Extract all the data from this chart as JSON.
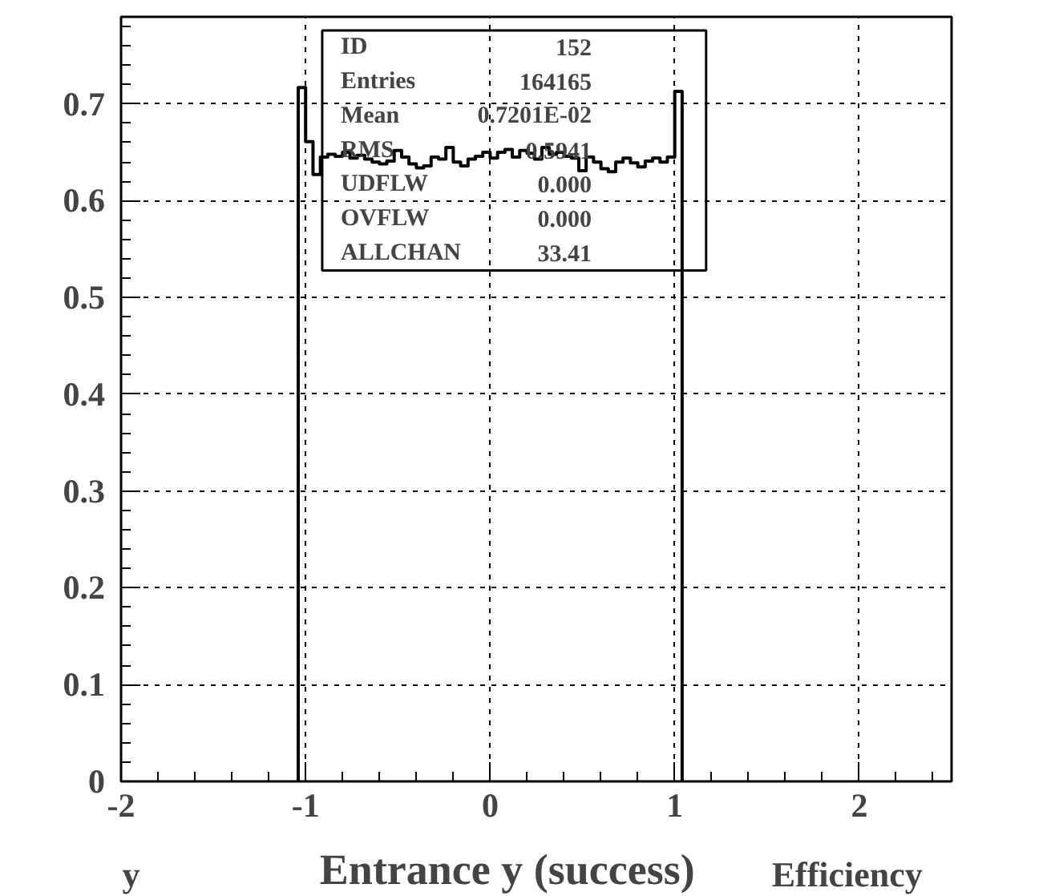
{
  "chart_data": {
    "type": "histogram",
    "xlabel": "Entrance y (success)",
    "bins": [
      -1.04,
      -1.0,
      -0.96,
      -0.92,
      -0.88,
      -0.84,
      -0.8,
      -0.76,
      -0.72,
      -0.68,
      -0.64,
      -0.6,
      -0.56,
      -0.52,
      -0.48,
      -0.44,
      -0.4,
      -0.36,
      -0.32,
      -0.28,
      -0.24,
      -0.2,
      -0.16,
      -0.12,
      -0.08,
      -0.04,
      0.0,
      0.04,
      0.08,
      0.12,
      0.16,
      0.2,
      0.24,
      0.28,
      0.32,
      0.36,
      0.4,
      0.44,
      0.48,
      0.52,
      0.56,
      0.6,
      0.64,
      0.68,
      0.72,
      0.76,
      0.8,
      0.84,
      0.88,
      0.92,
      0.96,
      1.0,
      1.04
    ],
    "values": [
      0.717,
      0.661,
      0.627,
      0.645,
      0.648,
      0.646,
      0.65,
      0.644,
      0.647,
      0.643,
      0.64,
      0.638,
      0.641,
      0.652,
      0.645,
      0.638,
      0.634,
      0.636,
      0.645,
      0.643,
      0.655,
      0.64,
      0.636,
      0.643,
      0.646,
      0.65,
      0.644,
      0.65,
      0.653,
      0.645,
      0.652,
      0.649,
      0.643,
      0.655,
      0.648,
      0.65,
      0.646,
      0.644,
      0.631,
      0.645,
      0.64,
      0.633,
      0.63,
      0.64,
      0.644,
      0.639,
      0.635,
      0.641,
      0.644,
      0.64,
      0.645,
      0.713
    ],
    "color": "#000000",
    "xlim": [
      -2,
      2.5
    ],
    "ylim": [
      0,
      0.79
    ],
    "xticks": [
      -2,
      -1,
      0,
      1,
      2
    ],
    "yticks": [
      0,
      0.1,
      0.2,
      0.3,
      0.4,
      0.5,
      0.6,
      0.7
    ],
    "grid": true,
    "annotations": [
      "ID",
      "152",
      "Entries",
      "164165",
      "Mean",
      "0.7201E-02",
      "RMS",
      "0.5941",
      "UDFLW",
      "0.000",
      "OVFLW",
      "0.000",
      "ALLCHAN",
      "33.41",
      "y",
      "Efficiency"
    ]
  }
}
